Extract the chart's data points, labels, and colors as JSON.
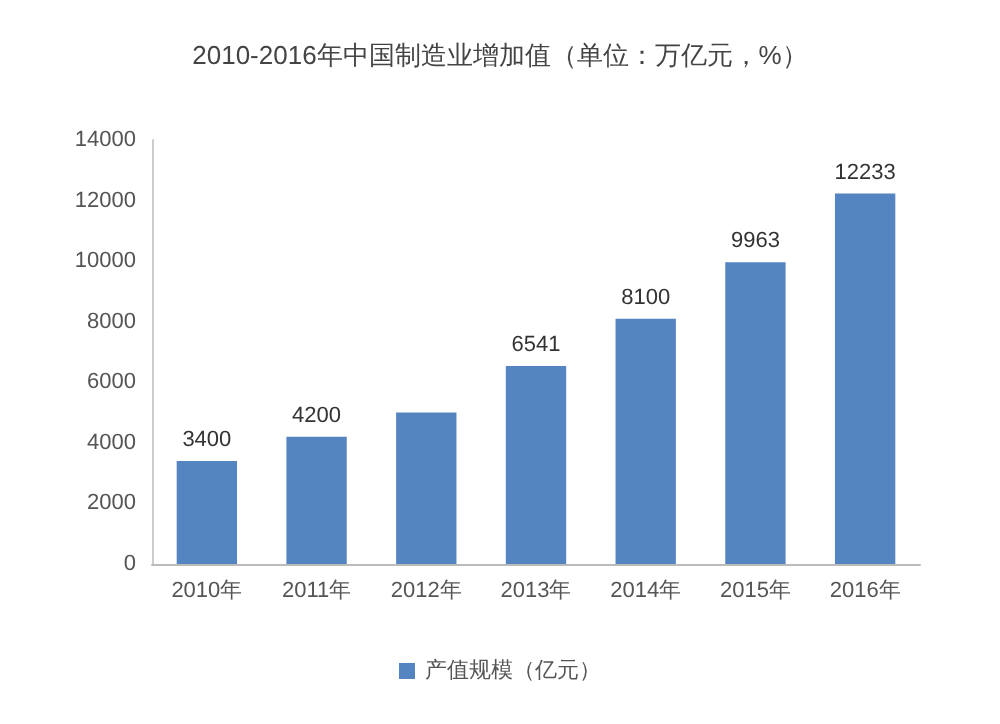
{
  "chart_data": {
    "type": "bar",
    "title": "2010-2016年中国制造业增加值（单位：万亿元，%）",
    "categories": [
      "2010年",
      "2011年",
      "2012年",
      "2013年",
      "2014年",
      "2015年",
      "2016年"
    ],
    "series": [
      {
        "name": "产值规模（亿元）",
        "color": "#5585c0",
        "values": [
          3400,
          4200,
          5000,
          6541,
          8100,
          9963,
          12233
        ],
        "value_labels": [
          "3400",
          "4200",
          null,
          "6541",
          "8100",
          "9963",
          "12233"
        ]
      }
    ],
    "ylim": [
      0,
      14000
    ],
    "yticks": [
      0,
      2000,
      4000,
      6000,
      8000,
      10000,
      12000,
      14000
    ],
    "grid": false,
    "legend": "bottom"
  }
}
